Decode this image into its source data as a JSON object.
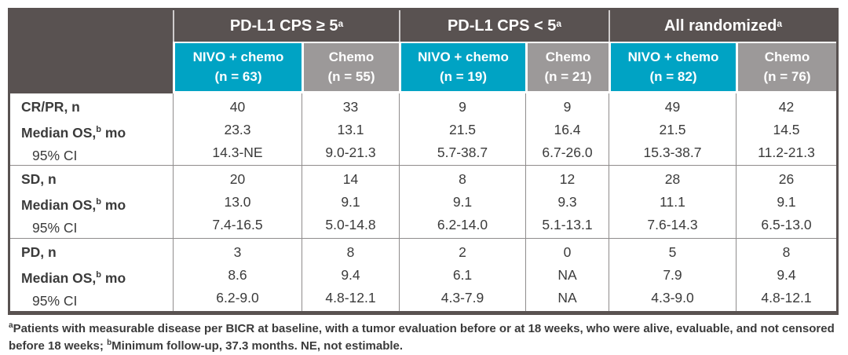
{
  "colors": {
    "dark": "#595251",
    "cyan": "#00A3C4",
    "graycell": "#9C9999",
    "line": "#8F8C8C",
    "text": "#3B3B3B"
  },
  "header": {
    "groups": [
      {
        "label": "PD-L1 CPS ≥ 5",
        "sup": "a"
      },
      {
        "label": "PD-L1 CPS < 5",
        "sup": "a"
      },
      {
        "label": "All randomized",
        "sup": "a"
      }
    ],
    "arms": [
      {
        "label": "NIVO + chemo",
        "n": "(n = 63)"
      },
      {
        "label": "Chemo",
        "n": "(n = 55)"
      },
      {
        "label": "NIVO + chemo",
        "n": "(n = 19)"
      },
      {
        "label": "Chemo",
        "n": "(n = 21)"
      },
      {
        "label": "NIVO + chemo",
        "n": "(n = 82)"
      },
      {
        "label": "Chemo",
        "n": "(n = 76)"
      }
    ]
  },
  "rows": [
    {
      "metric": "CR/PR, n",
      "os_pre": "Median OS,",
      "os_sup": "b",
      "os_post": " mo",
      "ci_label": "95% CI",
      "n": [
        "40",
        "33",
        "9",
        "9",
        "49",
        "42"
      ],
      "os": [
        "23.3",
        "13.1",
        "21.5",
        "16.4",
        "21.5",
        "14.5"
      ],
      "ci": [
        "14.3-NE",
        "9.0-21.3",
        "5.7-38.7",
        "6.7-26.0",
        "15.3-38.7",
        "11.2-21.3"
      ]
    },
    {
      "metric": "SD, n",
      "os_pre": "Median OS,",
      "os_sup": "b",
      "os_post": " mo",
      "ci_label": "95% CI",
      "n": [
        "20",
        "14",
        "8",
        "12",
        "28",
        "26"
      ],
      "os": [
        "13.0",
        "9.1",
        "9.1",
        "9.3",
        "11.1",
        "9.1"
      ],
      "ci": [
        "7.4-16.5",
        "5.0-14.8",
        "6.2-14.0",
        "5.1-13.1",
        "7.6-14.3",
        "6.5-13.0"
      ]
    },
    {
      "metric": "PD, n",
      "os_pre": "Median OS,",
      "os_sup": "b",
      "os_post": " mo",
      "ci_label": "95% CI",
      "n": [
        "3",
        "8",
        "2",
        "0",
        "5",
        "8"
      ],
      "os": [
        "8.6",
        "9.4",
        "6.1",
        "NA",
        "7.9",
        "9.4"
      ],
      "ci": [
        "6.2-9.0",
        "4.8-12.1",
        "4.3-7.9",
        "NA",
        "4.3-9.0",
        "4.8-12.1"
      ]
    }
  ],
  "footnote": {
    "sup_a": "a",
    "part_a": "Patients with measurable disease per BICR at baseline, with a tumor evaluation before or at 18 weeks, who were alive, evaluable, and not censored before 18 weeks; ",
    "sup_b": "b",
    "part_b": "Minimum follow-up, 37.3 months. NE, not estimable."
  }
}
